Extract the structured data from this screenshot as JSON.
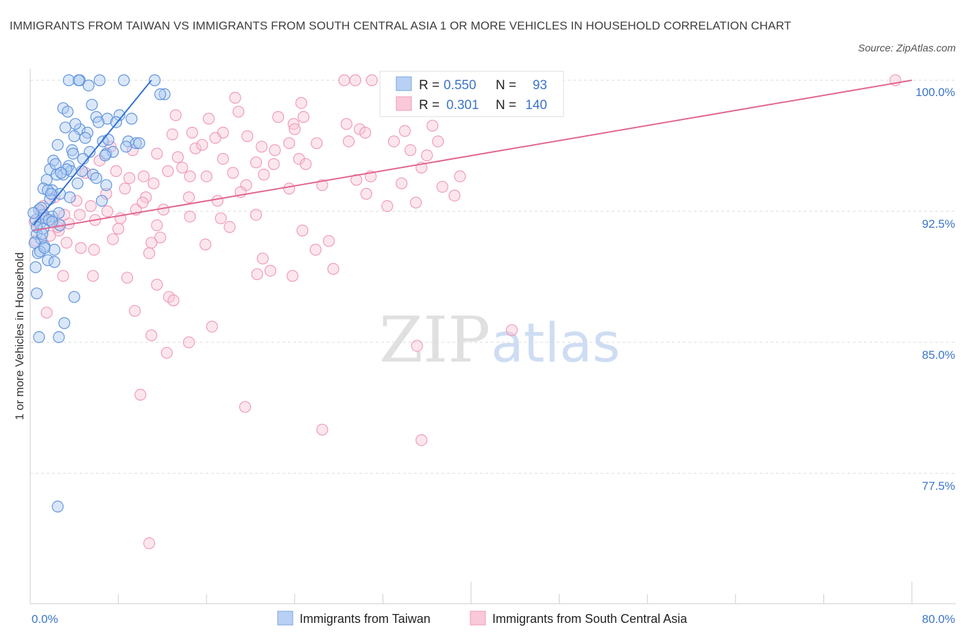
{
  "title": "IMMIGRANTS FROM TAIWAN VS IMMIGRANTS FROM SOUTH CENTRAL ASIA 1 OR MORE VEHICLES IN HOUSEHOLD CORRELATION CHART",
  "source": "Source: ZipAtlas.com",
  "watermark": {
    "zip": "ZIP",
    "atlas": "atlas"
  },
  "colors": {
    "blue": "#7aa6e0",
    "blue_line": "#2f6fd1",
    "pink": "#f09ab8",
    "pink_line": "#e0658f",
    "axis_text": "#3a73c8",
    "grid": "#d9d9d9"
  },
  "chart_data": {
    "type": "scatter",
    "title": "IMMIGRANTS FROM TAIWAN VS IMMIGRANTS FROM SOUTH CENTRAL ASIA 1 OR MORE VEHICLES IN HOUSEHOLD CORRELATION CHART",
    "xlabel": "",
    "ylabel": "1 or more Vehicles in Household",
    "xlim": [
      0,
      80
    ],
    "ylim": [
      70,
      100.5
    ],
    "x_tick_labels": [
      "0.0%",
      "80.0%"
    ],
    "y_ticks": [
      100.0,
      92.5,
      85.0,
      77.5
    ],
    "y_tick_labels": [
      "100.0%",
      "92.5%",
      "85.0%",
      "77.5%"
    ],
    "legend": {
      "entries": [
        {
          "name": "Immigrants from Taiwan",
          "r_label": "R = ",
          "r": "0.550",
          "n_label": "N = ",
          "n": "93"
        },
        {
          "name": "Immigrants from South Central Asia",
          "r_label": "R = ",
          "r": "0.301",
          "n_label": "N = ",
          "n": "140"
        }
      ]
    },
    "series": [
      {
        "name": "Immigrants from Taiwan",
        "trend": {
          "x": [
            0.3,
            11.0
          ],
          "y": [
            91.7,
            100.0
          ]
        },
        "points": [
          [
            3.5,
            100
          ],
          [
            4.5,
            100
          ],
          [
            6.3,
            100
          ],
          [
            8.5,
            100
          ],
          [
            11.3,
            100
          ],
          [
            4.4,
            100
          ],
          [
            3.0,
            98.4
          ],
          [
            5.6,
            98.6
          ],
          [
            8.1,
            98.0
          ],
          [
            12.2,
            99.2
          ],
          [
            6.0,
            97.9
          ],
          [
            7.0,
            97.8
          ],
          [
            3.2,
            97.3
          ],
          [
            4.5,
            97.2
          ],
          [
            5.2,
            97.0
          ],
          [
            4.0,
            96.8
          ],
          [
            6.6,
            96.5
          ],
          [
            8.9,
            96.5
          ],
          [
            9.6,
            96.4
          ],
          [
            2.5,
            96.3
          ],
          [
            3.8,
            96.0
          ],
          [
            5.4,
            95.9
          ],
          [
            6.9,
            95.8
          ],
          [
            2.1,
            95.4
          ],
          [
            3.5,
            95.1
          ],
          [
            1.8,
            94.9
          ],
          [
            2.4,
            94.6
          ],
          [
            3.0,
            94.6
          ],
          [
            1.5,
            94.3
          ],
          [
            4.3,
            94.1
          ],
          [
            6.9,
            94.0
          ],
          [
            1.2,
            93.8
          ],
          [
            2.0,
            93.7
          ],
          [
            2.7,
            93.5
          ],
          [
            1.8,
            93.2
          ],
          [
            6.5,
            93.1
          ],
          [
            0.8,
            92.6
          ],
          [
            1.2,
            92.3
          ],
          [
            2.0,
            92.2
          ],
          [
            0.5,
            92.0
          ],
          [
            0.9,
            91.8
          ],
          [
            2.7,
            91.7
          ],
          [
            1.2,
            91.5
          ],
          [
            0.6,
            91.2
          ],
          [
            1.0,
            90.9
          ],
          [
            0.4,
            90.7
          ],
          [
            1.3,
            90.5
          ],
          [
            2.2,
            90.3
          ],
          [
            0.7,
            90.1
          ],
          [
            1.6,
            89.7
          ],
          [
            2.2,
            89.6
          ],
          [
            0.5,
            89.3
          ],
          [
            4.0,
            87.6
          ],
          [
            0.6,
            87.8
          ],
          [
            3.1,
            86.1
          ],
          [
            0.8,
            85.3
          ],
          [
            2.6,
            85.3
          ],
          [
            2.5,
            75.6
          ],
          [
            9.9,
            96.4
          ],
          [
            7.5,
            95.9
          ],
          [
            5.0,
            96.7
          ],
          [
            3.7,
            94.8
          ],
          [
            1.6,
            93.7
          ],
          [
            6.2,
            97.6
          ],
          [
            9.2,
            97.8
          ],
          [
            11.8,
            99.2
          ],
          [
            3.3,
            94.9
          ],
          [
            1.0,
            92.7
          ],
          [
            0.6,
            91.6
          ],
          [
            1.9,
            93.5
          ],
          [
            2.6,
            92.4
          ],
          [
            4.8,
            95.5
          ],
          [
            3.4,
            98.2
          ],
          [
            7.8,
            97.6
          ],
          [
            5.3,
            99.7
          ],
          [
            2.3,
            95.2
          ],
          [
            1.4,
            92.1
          ],
          [
            0.9,
            90.2
          ],
          [
            4.1,
            97.5
          ],
          [
            6.8,
            95.7
          ],
          [
            8.7,
            96.2
          ],
          [
            3.9,
            95.8
          ],
          [
            2.8,
            94.7
          ],
          [
            1.1,
            91.2
          ],
          [
            0.3,
            92.4
          ],
          [
            1.7,
            92.0
          ],
          [
            5.7,
            94.6
          ],
          [
            7.1,
            96.6
          ],
          [
            2.0,
            91.9
          ],
          [
            3.6,
            93.3
          ],
          [
            4.7,
            94.8
          ],
          [
            6.0,
            94.4
          ],
          [
            1.3,
            90.4
          ]
        ]
      },
      {
        "name": "Immigrants from South Central Asia",
        "trend": {
          "x": [
            0.3,
            80.0
          ],
          "y": [
            91.4,
            100.0
          ]
        },
        "points": [
          [
            28.5,
            100
          ],
          [
            29.5,
            100
          ],
          [
            31.0,
            100
          ],
          [
            32.5,
            100
          ],
          [
            36.5,
            100
          ],
          [
            38.0,
            100
          ],
          [
            39.5,
            100
          ],
          [
            40.0,
            100
          ],
          [
            78.5,
            100
          ],
          [
            18.6,
            99.0
          ],
          [
            24.6,
            98.7
          ],
          [
            18.9,
            98.2
          ],
          [
            22.5,
            97.9
          ],
          [
            23.9,
            97.5
          ],
          [
            24.0,
            97.2
          ],
          [
            28.7,
            97.5
          ],
          [
            29.9,
            97.2
          ],
          [
            36.5,
            97.4
          ],
          [
            14.7,
            97.0
          ],
          [
            17.5,
            97.0
          ],
          [
            19.7,
            96.8
          ],
          [
            12.9,
            96.9
          ],
          [
            16.8,
            96.7
          ],
          [
            23.5,
            96.4
          ],
          [
            28.9,
            96.5
          ],
          [
            33.0,
            96.5
          ],
          [
            9.3,
            96.0
          ],
          [
            15.0,
            96.1
          ],
          [
            21.0,
            96.2
          ],
          [
            22.2,
            96.0
          ],
          [
            24.4,
            95.5
          ],
          [
            25.0,
            95.2
          ],
          [
            34.5,
            96.0
          ],
          [
            35.5,
            95.0
          ],
          [
            11.5,
            95.8
          ],
          [
            13.4,
            95.6
          ],
          [
            17.5,
            95.5
          ],
          [
            20.5,
            95.3
          ],
          [
            12.5,
            94.8
          ],
          [
            14.5,
            94.5
          ],
          [
            16.0,
            94.5
          ],
          [
            21.2,
            94.6
          ],
          [
            10.3,
            94.5
          ],
          [
            7.8,
            94.8
          ],
          [
            9.0,
            94.4
          ],
          [
            11.2,
            94.1
          ],
          [
            19.6,
            94.0
          ],
          [
            23.5,
            93.8
          ],
          [
            30.5,
            93.5
          ],
          [
            33.7,
            94.1
          ],
          [
            37.4,
            93.9
          ],
          [
            38.5,
            93.4
          ],
          [
            8.6,
            93.8
          ],
          [
            14.4,
            93.3
          ],
          [
            6.9,
            93.5
          ],
          [
            10.5,
            93.3
          ],
          [
            17.0,
            93.1
          ],
          [
            9.6,
            92.6
          ],
          [
            5.5,
            92.8
          ],
          [
            7.0,
            92.5
          ],
          [
            20.5,
            92.3
          ],
          [
            14.5,
            92.2
          ],
          [
            17.3,
            92.1
          ],
          [
            4.5,
            92.3
          ],
          [
            5.9,
            92.0
          ],
          [
            8.2,
            92.1
          ],
          [
            2.0,
            92.0
          ],
          [
            3.5,
            91.8
          ],
          [
            11.5,
            91.7
          ],
          [
            18.1,
            91.6
          ],
          [
            24.7,
            91.4
          ],
          [
            2.6,
            91.4
          ],
          [
            7.5,
            90.9
          ],
          [
            11.8,
            91.0
          ],
          [
            11.0,
            90.7
          ],
          [
            3.3,
            90.7
          ],
          [
            4.6,
            90.4
          ],
          [
            5.8,
            90.3
          ],
          [
            10.8,
            90.1
          ],
          [
            25.9,
            90.3
          ],
          [
            27.1,
            90.8
          ],
          [
            21.1,
            89.8
          ],
          [
            27.5,
            89.2
          ],
          [
            20.6,
            88.9
          ],
          [
            23.8,
            88.8
          ],
          [
            5.7,
            88.8
          ],
          [
            3.0,
            88.8
          ],
          [
            8.8,
            88.7
          ],
          [
            11.5,
            88.3
          ],
          [
            12.6,
            87.6
          ],
          [
            13.0,
            87.4
          ],
          [
            9.5,
            86.8
          ],
          [
            1.5,
            86.7
          ],
          [
            16.5,
            85.9
          ],
          [
            43.7,
            85.7
          ],
          [
            11.0,
            85.4
          ],
          [
            14.4,
            85.0
          ],
          [
            12.4,
            84.4
          ],
          [
            35.1,
            84.8
          ],
          [
            10.0,
            82.0
          ],
          [
            19.5,
            81.3
          ],
          [
            26.5,
            80.0
          ],
          [
            35.5,
            79.4
          ],
          [
            10.8,
            73.5
          ],
          [
            1.0,
            92.5
          ],
          [
            2.5,
            91.6
          ],
          [
            0.5,
            90.8
          ],
          [
            1.8,
            91.1
          ],
          [
            22.1,
            95.2
          ],
          [
            26.5,
            94.0
          ],
          [
            30.9,
            94.5
          ],
          [
            35.0,
            93.0
          ],
          [
            13.8,
            95.0
          ],
          [
            15.6,
            96.3
          ],
          [
            19.1,
            93.6
          ],
          [
            10.2,
            93.0
          ],
          [
            6.3,
            95.4
          ],
          [
            8.0,
            91.5
          ],
          [
            24.8,
            97.9
          ],
          [
            30.4,
            97.0
          ],
          [
            34.0,
            97.1
          ],
          [
            37.0,
            96.5
          ],
          [
            4.2,
            93.1
          ],
          [
            3.1,
            92.3
          ],
          [
            15.9,
            90.6
          ],
          [
            21.8,
            89.1
          ],
          [
            0.4,
            91.9
          ],
          [
            1.2,
            92.8
          ],
          [
            2.2,
            93.3
          ],
          [
            5.0,
            94.7
          ],
          [
            7.3,
            96.2
          ],
          [
            12.1,
            92.6
          ],
          [
            18.4,
            94.7
          ],
          [
            26.0,
            96.4
          ],
          [
            29.6,
            94.3
          ],
          [
            32.4,
            92.8
          ],
          [
            36.0,
            95.7
          ],
          [
            39.0,
            94.5
          ],
          [
            13.2,
            98.0
          ],
          [
            16.2,
            97.8
          ]
        ]
      }
    ]
  }
}
